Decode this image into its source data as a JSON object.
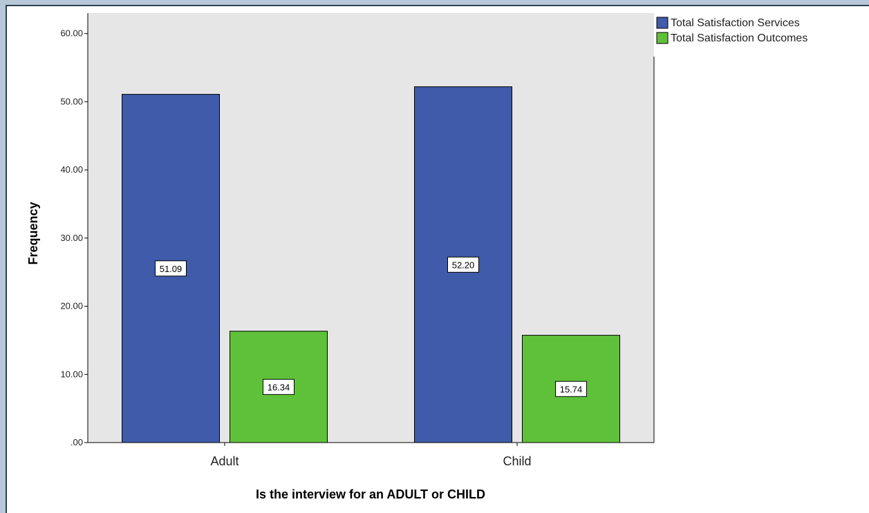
{
  "chart_data": {
    "type": "bar",
    "categories": [
      "Adult",
      "Child"
    ],
    "series": [
      {
        "name": "Total Satisfaction Services",
        "values": [
          51.09,
          52.2
        ],
        "color": "#3f5ba9"
      },
      {
        "name": "Total Satisfaction Outcomes",
        "values": [
          16.34,
          15.74
        ],
        "color": "#5fc13a"
      }
    ],
    "data_labels": [
      [
        "51.09",
        "52.20"
      ],
      [
        "16.34",
        "15.74"
      ]
    ],
    "title": "",
    "xlabel": "Is the interview for an ADULT or CHILD",
    "ylabel": "Frequency",
    "ylim": [
      0,
      63
    ],
    "yticks": [
      0,
      10,
      20,
      30,
      40,
      50,
      60
    ],
    "ytick_labels": [
      ".00",
      "10.00",
      "20.00",
      "30.00",
      "40.00",
      "50.00",
      "60.00"
    ],
    "grid": false,
    "legend_position": "top-right",
    "plot_background": "#e6e6e6"
  }
}
